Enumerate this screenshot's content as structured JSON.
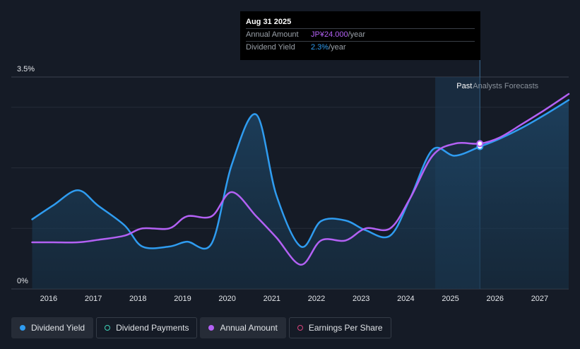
{
  "tooltip": {
    "date": "Aug 31 2025",
    "rows": [
      {
        "label": "Annual Amount",
        "value": "JP¥24.000",
        "unit": "/year"
      },
      {
        "label": "Dividend Yield",
        "value": "2.3%",
        "unit": "/year"
      }
    ]
  },
  "legend": [
    {
      "label": "Dividend Yield",
      "color": "#2f9cf0",
      "filled": true
    },
    {
      "label": "Dividend Payments",
      "color": "#3fd3b8",
      "filled": false
    },
    {
      "label": "Annual Amount",
      "color": "#b361f4",
      "filled": true
    },
    {
      "label": "Earnings Per Share",
      "color": "#d9437c",
      "filled": false
    }
  ],
  "chart_data": {
    "type": "line",
    "y_tick_labels": [
      "3.5%",
      "0%"
    ],
    "x_tick_labels": [
      "2016",
      "2017",
      "2018",
      "2019",
      "2020",
      "2021",
      "2022",
      "2023",
      "2024",
      "2025",
      "2026",
      "2027"
    ],
    "past_label": "Past",
    "forecast_label": "Analysts Forecasts",
    "ylim": [
      0,
      3.5
    ],
    "xlim": [
      2015.4,
      2027.65
    ],
    "forecast_start": 2025.66,
    "series": [
      {
        "name": "Dividend Yield",
        "color": "#2f9cf0",
        "area": true,
        "points": [
          [
            2015.63,
            1.15
          ],
          [
            2016.1,
            1.38
          ],
          [
            2016.65,
            1.63
          ],
          [
            2017.1,
            1.38
          ],
          [
            2017.7,
            1.05
          ],
          [
            2018.1,
            0.7
          ],
          [
            2018.7,
            0.7
          ],
          [
            2019.1,
            0.78
          ],
          [
            2019.65,
            0.75
          ],
          [
            2020.1,
            2.05
          ],
          [
            2020.65,
            2.88
          ],
          [
            2021.1,
            1.55
          ],
          [
            2021.65,
            0.7
          ],
          [
            2022.1,
            1.12
          ],
          [
            2022.65,
            1.13
          ],
          [
            2023.1,
            0.97
          ],
          [
            2023.65,
            0.88
          ],
          [
            2024.1,
            1.5
          ],
          [
            2024.6,
            2.3
          ],
          [
            2025.1,
            2.2
          ],
          [
            2025.66,
            2.35
          ],
          [
            2026.1,
            2.48
          ],
          [
            2026.6,
            2.66
          ],
          [
            2027.1,
            2.87
          ],
          [
            2027.65,
            3.12
          ]
        ]
      },
      {
        "name": "Annual Amount",
        "color": "#b361f4",
        "area": false,
        "points": [
          [
            2015.63,
            0.77
          ],
          [
            2016.1,
            0.77
          ],
          [
            2016.65,
            0.77
          ],
          [
            2017.1,
            0.81
          ],
          [
            2017.7,
            0.88
          ],
          [
            2018.1,
            1.0
          ],
          [
            2018.7,
            1.0
          ],
          [
            2019.1,
            1.2
          ],
          [
            2019.65,
            1.2
          ],
          [
            2020.1,
            1.6
          ],
          [
            2020.65,
            1.2
          ],
          [
            2021.1,
            0.85
          ],
          [
            2021.65,
            0.4
          ],
          [
            2022.1,
            0.8
          ],
          [
            2022.65,
            0.8
          ],
          [
            2023.1,
            1.0
          ],
          [
            2023.65,
            1.0
          ],
          [
            2024.1,
            1.5
          ],
          [
            2024.6,
            2.2
          ],
          [
            2025.1,
            2.4
          ],
          [
            2025.66,
            2.4
          ],
          [
            2026.1,
            2.5
          ],
          [
            2026.6,
            2.72
          ],
          [
            2027.1,
            2.95
          ],
          [
            2027.65,
            3.22
          ]
        ]
      }
    ],
    "highlight_x": 2025.66,
    "highlight_values": [
      2.35,
      2.4
    ]
  }
}
